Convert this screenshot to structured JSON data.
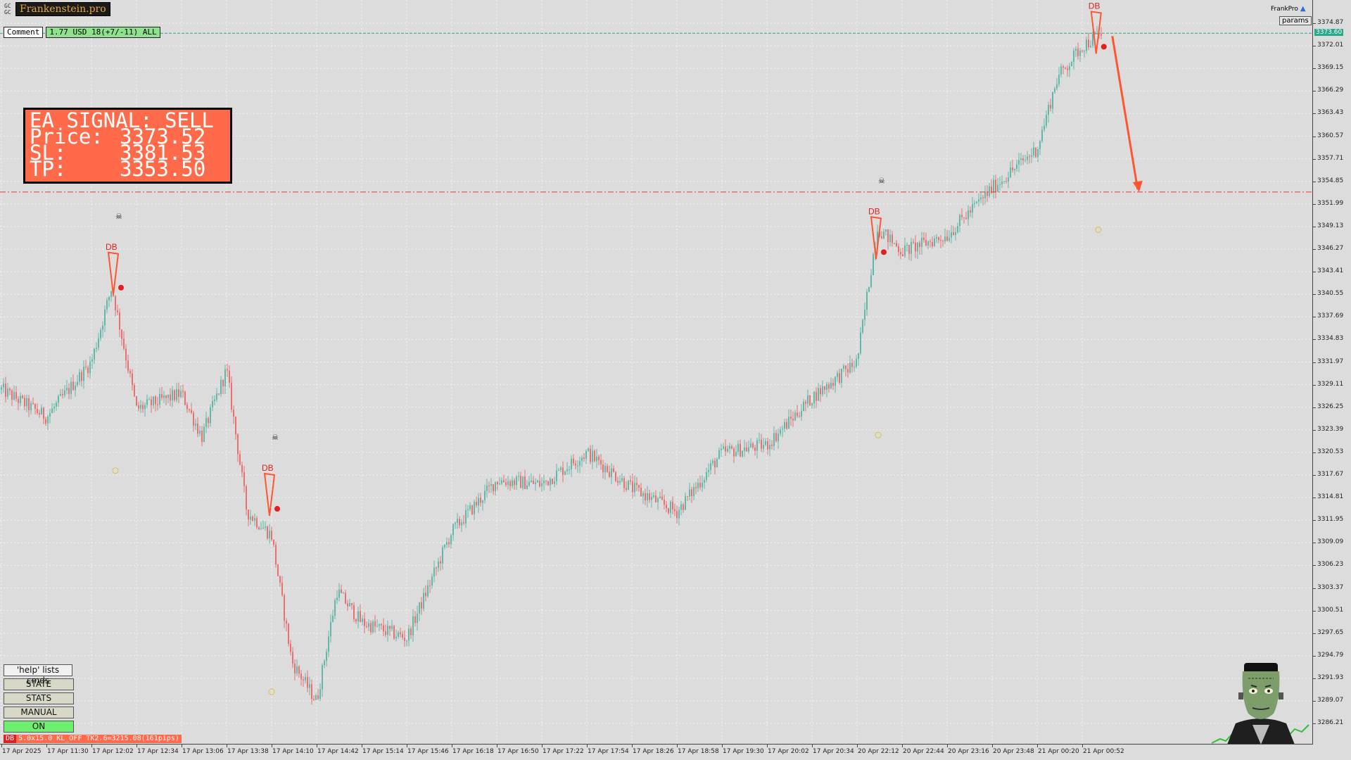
{
  "app": {
    "brand": "Frankenstein.pro",
    "symbol_lines": [
      "GC",
      "GC"
    ],
    "frankpro_label": "FrankPro",
    "params_label": "params"
  },
  "comment": {
    "label": "Comment",
    "value": "1.77 USD 18(+7/-11) ALL"
  },
  "signal": {
    "title": "EA SIGNAL: SELL",
    "rows": [
      {
        "key": "Price:",
        "value": "3373.52"
      },
      {
        "key": "SL:",
        "value": "3381.53"
      },
      {
        "key": "TP:",
        "value": "3353.50"
      }
    ]
  },
  "panel": {
    "help": "'help' lists cmds",
    "state": "STATE",
    "stats": "STATS",
    "manual": "MANUAL",
    "on": "ON"
  },
  "status": {
    "tag": "DB",
    "text": "5.0x15.0 KL_OFF TK2.6=3215.08(161pips)"
  },
  "price_axis": {
    "current_price": "3373.60",
    "labels": [
      "3374.87",
      "3372.01",
      "3369.15",
      "3366.29",
      "3363.43",
      "3360.57",
      "3357.71",
      "3354.85",
      "3351.99",
      "3349.13",
      "3346.27",
      "3343.41",
      "3340.55",
      "3337.69",
      "3334.83",
      "3331.97",
      "3329.11",
      "3326.25",
      "3323.39",
      "3320.53",
      "3317.67",
      "3314.81",
      "3311.95",
      "3309.09",
      "3306.23",
      "3303.37",
      "3300.51",
      "3297.65",
      "3294.79",
      "3291.93",
      "3289.07",
      "3286.21"
    ]
  },
  "time_axis": {
    "labels": [
      "17 Apr 2025",
      "17 Apr 11:30",
      "17 Apr 12:02",
      "17 Apr 12:34",
      "17 Apr 13:06",
      "17 Apr 13:38",
      "17 Apr 14:10",
      "17 Apr 14:42",
      "17 Apr 15:14",
      "17 Apr 15:46",
      "17 Apr 16:18",
      "17 Apr 16:50",
      "17 Apr 17:22",
      "17 Apr 17:54",
      "17 Apr 18:26",
      "17 Apr 18:58",
      "17 Apr 19:30",
      "17 Apr 20:02",
      "17 Apr 20:34",
      "20 Apr 22:12",
      "20 Apr 22:44",
      "20 Apr 23:16",
      "20 Apr 23:48",
      "21 Apr 00:20",
      "21 Apr 00:52"
    ]
  },
  "chart_markers": {
    "pattern_label": "DB"
  },
  "chart_data": {
    "type": "candlestick",
    "bull_color": "#5fb8a8",
    "bear_color": "#e87070",
    "signal_color": "#ff5533",
    "tp_line_price": 3353.5,
    "current_price": 3373.6,
    "close_path": [
      {
        "t": "17 Apr 2025",
        "p": 3328.5
      },
      {
        "t": "17 Apr 11:30",
        "p": 3325.0
      },
      {
        "t": "17 Apr 12:02",
        "p": 3332.0
      },
      {
        "t": "17 Apr 12:02",
        "p": 3341.5
      },
      {
        "t": "17 Apr 12:34",
        "p": 3326.0
      },
      {
        "t": "17 Apr 13:06",
        "p": 3328.0
      },
      {
        "t": "17 Apr 13:06",
        "p": 3322.5
      },
      {
        "t": "17 Apr 13:38",
        "p": 3331.0
      },
      {
        "t": "17 Apr 13:38",
        "p": 3313.0
      },
      {
        "t": "17 Apr 14:10",
        "p": 3310.0
      },
      {
        "t": "17 Apr 14:10",
        "p": 3294.0
      },
      {
        "t": "17 Apr 14:42",
        "p": 3289.0
      },
      {
        "t": "17 Apr 14:42",
        "p": 3303.0
      },
      {
        "t": "17 Apr 15:14",
        "p": 3299.0
      },
      {
        "t": "17 Apr 15:46",
        "p": 3297.0
      },
      {
        "t": "17 Apr 16:18",
        "p": 3310.5
      },
      {
        "t": "17 Apr 16:50",
        "p": 3317.0
      },
      {
        "t": "17 Apr 17:22",
        "p": 3316.5
      },
      {
        "t": "17 Apr 17:54",
        "p": 3320.5
      },
      {
        "t": "17 Apr 18:26",
        "p": 3316.0
      },
      {
        "t": "17 Apr 18:58",
        "p": 3313.0
      },
      {
        "t": "17 Apr 19:30",
        "p": 3320.5
      },
      {
        "t": "17 Apr 20:02",
        "p": 3321.5
      },
      {
        "t": "17 Apr 20:34",
        "p": 3327.5
      },
      {
        "t": "20 Apr 22:12",
        "p": 3332.0
      },
      {
        "t": "20 Apr 22:12",
        "p": 3349.0
      },
      {
        "t": "20 Apr 22:44",
        "p": 3346.0
      },
      {
        "t": "20 Apr 23:16",
        "p": 3348.0
      },
      {
        "t": "20 Apr 23:48",
        "p": 3354.0
      },
      {
        "t": "21 Apr 00:20",
        "p": 3359.0
      },
      {
        "t": "21 Apr 00:20",
        "p": 3368.0
      },
      {
        "t": "21 Apr 00:52",
        "p": 3372.0
      },
      {
        "t": "21 Apr 00:52",
        "p": 3373.6
      }
    ]
  }
}
